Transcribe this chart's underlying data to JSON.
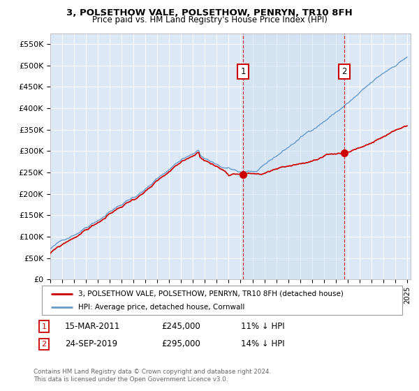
{
  "title": "3, POLSETHOW VALE, POLSETHOW, PENRYN, TR10 8FH",
  "subtitle": "Price paid vs. HM Land Registry's House Price Index (HPI)",
  "ylim": [
    0,
    575000
  ],
  "yticks": [
    0,
    50000,
    100000,
    150000,
    200000,
    250000,
    300000,
    350000,
    400000,
    450000,
    500000,
    550000
  ],
  "ytick_labels": [
    "£0",
    "£50K",
    "£100K",
    "£150K",
    "£200K",
    "£250K",
    "£300K",
    "£350K",
    "£400K",
    "£450K",
    "£500K",
    "£550K"
  ],
  "background_color": "#ffffff",
  "plot_bg_color": "#dce8f5",
  "grid_color": "#ffffff",
  "legend_label_red": "3, POLSETHOW VALE, POLSETHOW, PENRYN, TR10 8FH (detached house)",
  "legend_label_blue": "HPI: Average price, detached house, Cornwall",
  "marker1_date": "15-MAR-2011",
  "marker1_price": "£245,000",
  "marker1_hpi": "11% ↓ HPI",
  "marker1_year": 2011.21,
  "marker1_value": 245000,
  "marker2_date": "24-SEP-2019",
  "marker2_price": "£295,000",
  "marker2_hpi": "14% ↓ HPI",
  "marker2_year": 2019.73,
  "marker2_value": 295000,
  "footnote1": "Contains HM Land Registry data © Crown copyright and database right 2024.",
  "footnote2": "This data is licensed under the Open Government Licence v3.0.",
  "red_line_color": "#cc0000",
  "blue_line_color": "#6699cc",
  "shade_color": "#dce8f5",
  "marker_box_color": "#cc0000"
}
